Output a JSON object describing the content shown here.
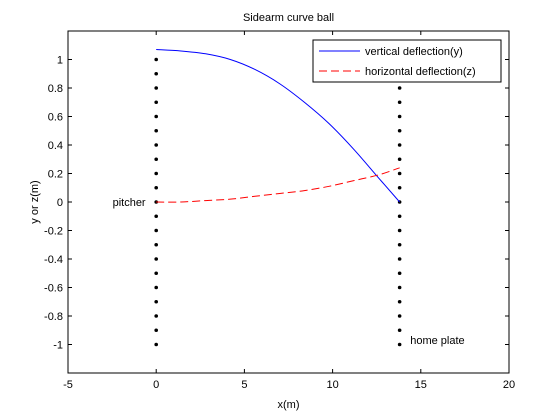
{
  "chart_data": {
    "type": "line",
    "title": "Sidearm curve ball",
    "xlabel": "x(m)",
    "ylabel": "y or z(m)",
    "xlim": [
      -5,
      20
    ],
    "ylim": [
      -1.2,
      1.2
    ],
    "xticks": [
      -5,
      0,
      5,
      10,
      15,
      20
    ],
    "yticks": [
      -1,
      -0.8,
      -0.6,
      -0.4,
      -0.2,
      0,
      0.2,
      0.4,
      0.6,
      0.8,
      1
    ],
    "xtick_labels": [
      "-5",
      "0",
      "5",
      "10",
      "15",
      "20"
    ],
    "ytick_labels": [
      "-1",
      "-0.8",
      "-0.6",
      "-0.4",
      "-0.2",
      "0",
      "0.2",
      "0.4",
      "0.6",
      "0.8",
      "1"
    ],
    "grid": false,
    "legend_position": "top-right",
    "series": [
      {
        "name": "vertical deflection(y)",
        "color": "#0000ff",
        "style": "solid",
        "x": [
          0,
          1.4,
          2.8,
          4.2,
          5.6,
          7.0,
          8.4,
          9.8,
          11.2,
          12.6,
          13.8
        ],
        "y": [
          1.07,
          1.06,
          1.04,
          1.0,
          0.93,
          0.83,
          0.7,
          0.55,
          0.37,
          0.17,
          0.0
        ]
      },
      {
        "name": "horizontal deflection(z)",
        "color": "#ff0000",
        "style": "dashed",
        "x": [
          0,
          1.4,
          2.8,
          4.2,
          5.6,
          7.0,
          8.4,
          9.8,
          11.2,
          12.6,
          13.8
        ],
        "y": [
          0.0,
          0.0,
          0.01,
          0.02,
          0.04,
          0.06,
          0.08,
          0.11,
          0.15,
          0.19,
          0.24
        ]
      }
    ],
    "markers": [
      {
        "x": [
          0,
          0,
          0,
          0,
          0,
          0,
          0,
          0,
          0,
          0,
          0,
          0,
          0,
          0,
          0,
          0,
          0,
          0,
          0,
          0,
          0
        ],
        "y": [
          -1,
          -0.9,
          -0.8,
          -0.7,
          -0.6,
          -0.5,
          -0.4,
          -0.3,
          -0.2,
          -0.1,
          0,
          0.1,
          0.2,
          0.3,
          0.4,
          0.5,
          0.6,
          0.7,
          0.8,
          0.9,
          1
        ]
      },
      {
        "x": [
          13.8,
          13.8,
          13.8,
          13.8,
          13.8,
          13.8,
          13.8,
          13.8,
          13.8,
          13.8,
          13.8,
          13.8,
          13.8,
          13.8,
          13.8,
          13.8,
          13.8,
          13.8,
          13.8,
          13.8,
          13.8
        ],
        "y": [
          -1,
          -0.9,
          -0.8,
          -0.7,
          -0.6,
          -0.5,
          -0.4,
          -0.3,
          -0.2,
          -0.1,
          0,
          0.1,
          0.2,
          0.3,
          0.4,
          0.5,
          0.6,
          0.7,
          0.8,
          0.9,
          1
        ]
      }
    ],
    "annotations": [
      {
        "text": "pitcher",
        "x": -0.6,
        "y": 0.0
      },
      {
        "text": "home plate",
        "x": 14.4,
        "y": -0.97
      }
    ],
    "colors": {
      "axes": "#000000",
      "background": "#ffffff",
      "markers": "#000000"
    }
  }
}
